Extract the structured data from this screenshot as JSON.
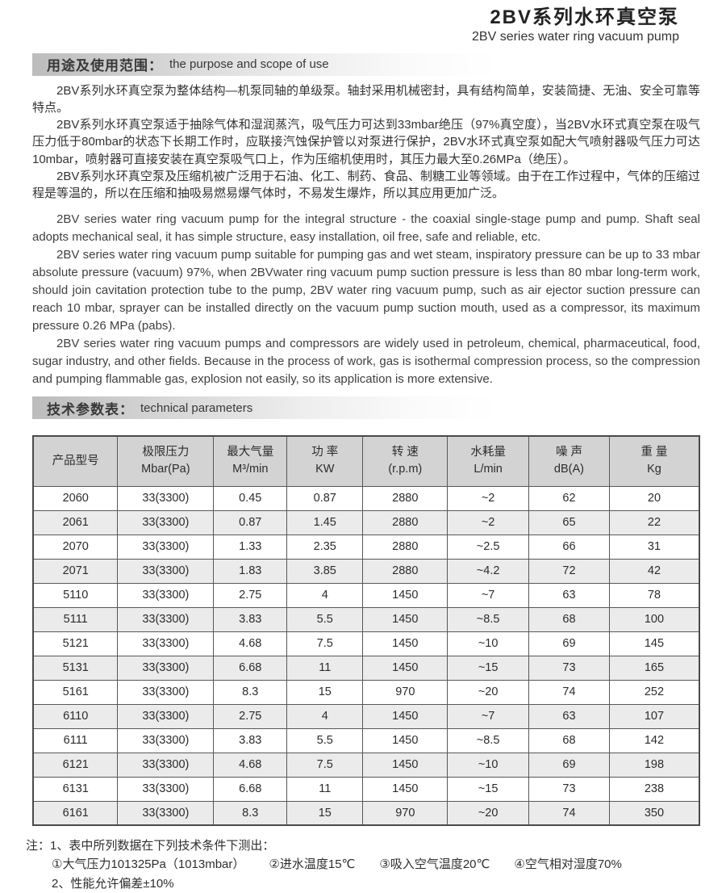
{
  "header": {
    "title_zh": "2BV系列水环真空泵",
    "title_en": "2BV series water ring vacuum pump"
  },
  "section_purpose": {
    "heading_zh": "用途及使用范围：",
    "heading_en": "the purpose and scope of use",
    "paragraphs_zh": [
      "2BV系列水环真空泵为整体结构—机泵同轴的单级泵。轴封采用机械密封，具有结构简单，安装简捷、无油、安全可靠等特点。",
      "2BV系列水环真空泵适于抽除气体和湿润蒸汽，吸气压力可达到33mbar绝压（97%真空度），当2BV水环式真空泵在吸气压力低于80mbar的状态下长期工作时，应联接汽蚀保护管以对泵进行保护，2BV水环式真空泵如配大气喷射器吸气压力可达10mbar，喷射器可直接安装在真空泵吸气口上，作为压缩机使用时，其压力最大至0.26MPa（绝压）。",
      "2BV系列水环真空泵及压缩机被广泛用于石油、化工、制药、食品、制糖工业等领域。由于在工作过程中，气体的压缩过程是等温的，所以在压缩和抽吸易燃易爆气体时，不易发生爆炸，所以其应用更加广泛。"
    ],
    "paragraphs_en": [
      "2BV series water ring vacuum pump for the integral structure - the coaxial single-stage pump and pump. Shaft seal adopts mechanical seal, it has simple structure, easy installation, oil free, safe and reliable, etc.",
      "2BV series water ring vacuum pump suitable for pumping gas and wet steam, inspiratory pressure can be up to 33 mbar absolute pressure (vacuum) 97%, when 2BVwater ring vacuum pump suction pressure is less than 80 mbar long-term work, should join cavitation protection tube to the pump, 2BV water ring vacuum pump, such as air ejector suction pressure can reach 10 mbar, sprayer can be installed directly on the vacuum pump suction mouth, used as a compressor, its maximum pressure 0.26 MPa (pabs).",
      "2BV series water ring vacuum pumps and compressors are widely used in petroleum, chemical, pharmaceutical, food, sugar industry, and other fields. Because in the process of work, gas is isothermal compression process, so the compression and pumping flammable gas, explosion not easily, so its application is more extensive."
    ]
  },
  "section_parameters": {
    "heading_zh": "技术参数表：",
    "heading_en": "technical parameters"
  },
  "table": {
    "columns": [
      {
        "zh": "产品型号",
        "sub": ""
      },
      {
        "zh": "极限压力",
        "sub": "Mbar(Pa)"
      },
      {
        "zh": "最大气量",
        "sub": "M³/min"
      },
      {
        "zh": "功 率",
        "sub": "KW"
      },
      {
        "zh": "转 速",
        "sub": "(r.p.m)"
      },
      {
        "zh": "水耗量",
        "sub": "L/min"
      },
      {
        "zh": "噪 声",
        "sub": "dB(A)"
      },
      {
        "zh": "重 量",
        "sub": "Kg"
      }
    ],
    "rows": [
      [
        "2060",
        "33(3300)",
        "0.45",
        "0.87",
        "2880",
        "~2",
        "62",
        "20"
      ],
      [
        "2061",
        "33(3300)",
        "0.87",
        "1.45",
        "2880",
        "~2",
        "65",
        "22"
      ],
      [
        "2070",
        "33(3300)",
        "1.33",
        "2.35",
        "2880",
        "~2.5",
        "66",
        "31"
      ],
      [
        "2071",
        "33(3300)",
        "1.83",
        "3.85",
        "2880",
        "~4.2",
        "72",
        "42"
      ],
      [
        "5110",
        "33(3300)",
        "2.75",
        "4",
        "1450",
        "~7",
        "63",
        "78"
      ],
      [
        "5111",
        "33(3300)",
        "3.83",
        "5.5",
        "1450",
        "~8.5",
        "68",
        "100"
      ],
      [
        "5121",
        "33(3300)",
        "4.68",
        "7.5",
        "1450",
        "~10",
        "69",
        "145"
      ],
      [
        "5131",
        "33(3300)",
        "6.68",
        "11",
        "1450",
        "~15",
        "73",
        "165"
      ],
      [
        "5161",
        "33(3300)",
        "8.3",
        "15",
        "970",
        "~20",
        "74",
        "252"
      ],
      [
        "6110",
        "33(3300)",
        "2.75",
        "4",
        "1450",
        "~7",
        "63",
        "107"
      ],
      [
        "6111",
        "33(3300)",
        "3.83",
        "5.5",
        "1450",
        "~8.5",
        "68",
        "142"
      ],
      [
        "6121",
        "33(3300)",
        "4.68",
        "7.5",
        "1450",
        "~10",
        "69",
        "198"
      ],
      [
        "6131",
        "33(3300)",
        "6.68",
        "11",
        "1450",
        "~15",
        "73",
        "238"
      ],
      [
        "6161",
        "33(3300)",
        "8.3",
        "15",
        "970",
        "~20",
        "74",
        "350"
      ]
    ]
  },
  "notes": {
    "label": "注：",
    "line1": "1、表中所列数据在下列技术条件下测出：",
    "conditions": [
      "①大气压力101325Pa（1013mbar）",
      "②进水温度15℃",
      "③吸入空气温度20℃",
      "④空气相对湿度70%"
    ],
    "line3": "2、性能允许偏差±10%"
  },
  "colors": {
    "table_header_bg": "#d3d3d3",
    "table_alt_row_bg": "#ebebeb",
    "table_border": "#585858",
    "section_bar_start": "#bcbcbc"
  }
}
